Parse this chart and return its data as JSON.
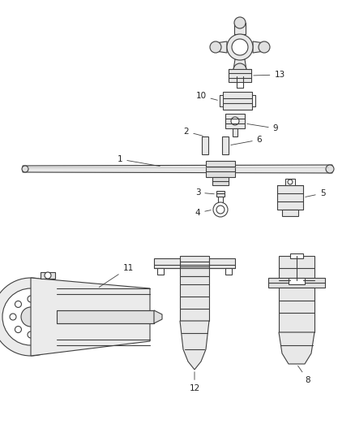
{
  "background_color": "#ffffff",
  "line_color": "#404040",
  "label_color": "#222222",
  "fig_width": 4.38,
  "fig_height": 5.33,
  "dpi": 100
}
